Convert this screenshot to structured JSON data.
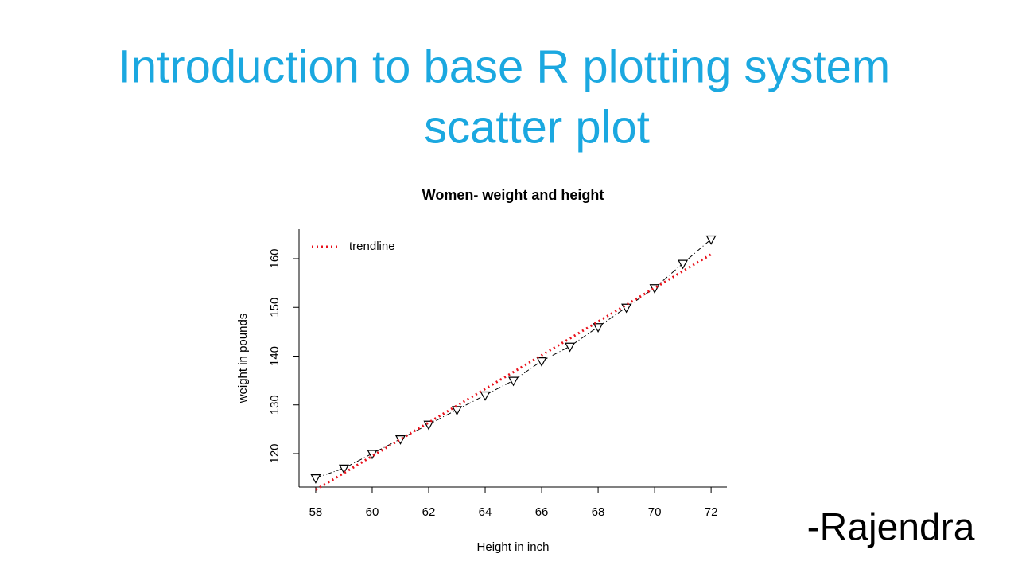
{
  "slide": {
    "title_lines": [
      "Introduction to base R plotting system",
      "scatter plot"
    ],
    "author": "-Rajendra"
  },
  "chart_data": {
    "type": "scatter",
    "title": "Women- weight and height",
    "x_label": "Height in inch",
    "y_label": "weight in pounds",
    "x": [
      58,
      59,
      60,
      61,
      62,
      63,
      64,
      65,
      66,
      67,
      68,
      69,
      70,
      71,
      72
    ],
    "series": [
      {
        "color": "#000000",
        "values": [
          115,
          117,
          120,
          123,
          126,
          129,
          132,
          135,
          139,
          142,
          146,
          150,
          154,
          159,
          164
        ]
      },
      {
        "name": "trendline",
        "color": "#e8101a",
        "values": [
          112.58,
          116.03,
          119.48,
          122.93,
          126.38,
          129.83,
          133.28,
          136.73,
          140.18,
          143.63,
          147.08,
          150.53,
          153.98,
          157.43,
          160.88
        ]
      }
    ],
    "xlim": [
      57.41,
      72.56
    ],
    "ylim": [
      113.14,
      166.04
    ],
    "xticks": [
      58,
      60,
      62,
      64,
      66,
      68,
      70,
      72
    ],
    "yticks": [
      120,
      130,
      140,
      150,
      160
    ],
    "legend": "top-left",
    "grid": false
  }
}
